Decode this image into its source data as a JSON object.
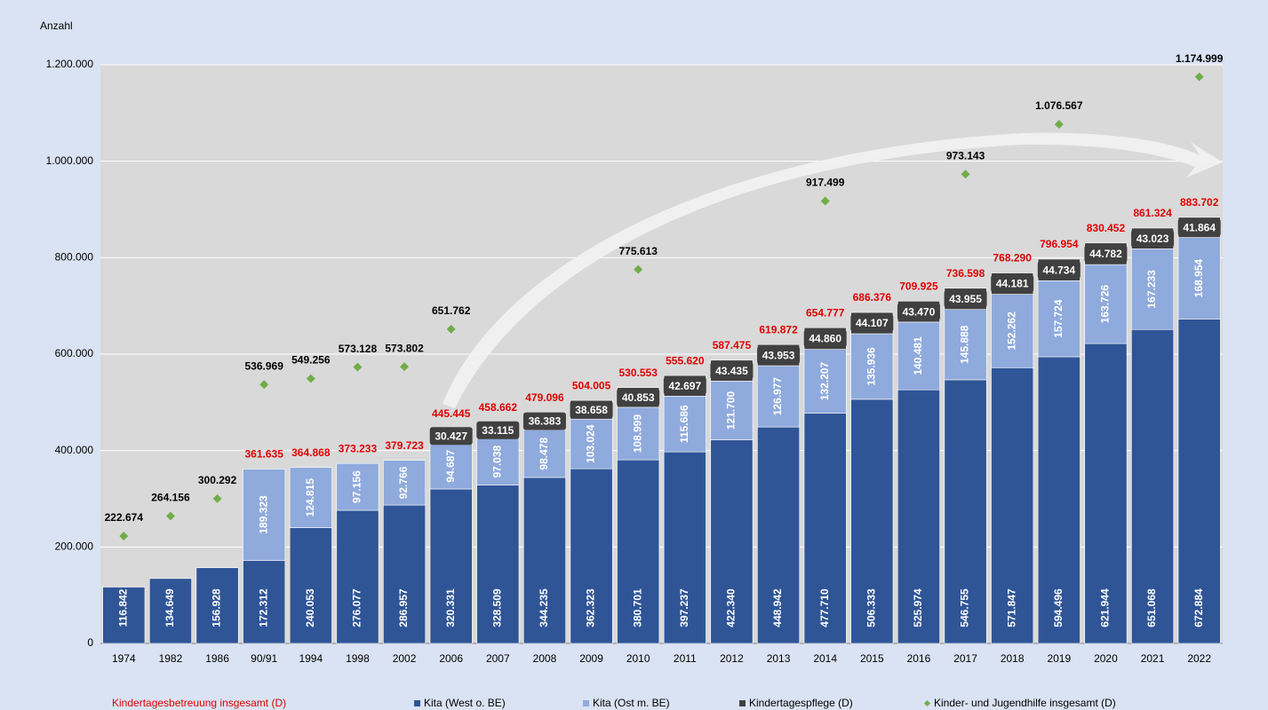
{
  "chart_data": {
    "type": "bar",
    "stacked": true,
    "y_label": "Anzahl",
    "categories": [
      "1974",
      "1982",
      "1986",
      "90/91",
      "1994",
      "1998",
      "2002",
      "2006",
      "2007",
      "2008",
      "2009",
      "2010",
      "2011",
      "2012",
      "2013",
      "2014",
      "2015",
      "2016",
      "2017",
      "2018",
      "2019",
      "2020",
      "2021",
      "2022"
    ],
    "ylim": [
      0,
      1200000
    ],
    "yticks": [
      0,
      {
        "value": 200000,
        "label": "200.000"
      },
      {
        "value": 400000,
        "label": "400.000"
      },
      {
        "value": 600000,
        "label": "600.000"
      },
      {
        "value": 800000,
        "label": "800.000"
      },
      {
        "value": 1000000,
        "label": "1.000.000"
      },
      {
        "value": 1200000,
        "label": "1.200.000"
      }
    ],
    "grid": true,
    "series": [
      {
        "name": "Kita (West o. BE)",
        "kind": "bar",
        "color": "#2f5597",
        "values": [
          116842,
          134649,
          156928,
          172312,
          240053,
          276077,
          286957,
          320331,
          328509,
          344235,
          362323,
          380701,
          397237,
          422340,
          448942,
          477710,
          506333,
          525974,
          546755,
          571847,
          594496,
          621944,
          651068,
          672884
        ],
        "value_labels": [
          "116.842",
          "134.649",
          "156.928",
          "172.312",
          "240.053",
          "276.077",
          "286.957",
          "320.331",
          "328.509",
          "344.235",
          "362.323",
          "380.701",
          "397.237",
          "422.340",
          "448.942",
          "477.710",
          "506.333",
          "525.974",
          "546.755",
          "571.847",
          "594.496",
          "621.944",
          "651.068",
          "672.884"
        ]
      },
      {
        "name": "Kita (Ost m. BE)",
        "kind": "bar",
        "color": "#8faadc",
        "values": [
          null,
          null,
          null,
          189323,
          124815,
          97156,
          92766,
          94687,
          97038,
          98478,
          103024,
          108999,
          115686,
          121700,
          126977,
          132207,
          135936,
          140481,
          145888,
          152262,
          157724,
          163726,
          167233,
          168954
        ],
        "value_labels": [
          null,
          null,
          null,
          "189.323",
          "124.815",
          "97.156",
          "92.766",
          "94.687",
          "97.038",
          "98.478",
          "103.024",
          "108.999",
          "115.686",
          "121.700",
          "126.977",
          "132.207",
          "135.936",
          "140.481",
          "145.888",
          "152.262",
          "157.724",
          "163.726",
          "167.233",
          "168.954"
        ]
      },
      {
        "name": "Kindertagespflege (D)",
        "kind": "bar",
        "color": "#404040",
        "values": [
          null,
          null,
          null,
          null,
          null,
          null,
          null,
          30427,
          33115,
          36383,
          38658,
          40853,
          42697,
          43435,
          43953,
          44860,
          44107,
          43470,
          43955,
          44181,
          44734,
          44782,
          43023,
          41864
        ],
        "value_labels": [
          null,
          null,
          null,
          null,
          null,
          null,
          null,
          "30.427",
          "33.115",
          "36.383",
          "38.658",
          "40.853",
          "42.697",
          "43.435",
          "43.953",
          "44.860",
          "44.107",
          "43.470",
          "43.955",
          "44.181",
          "44.734",
          "44.782",
          "43.023",
          "41.864"
        ]
      },
      {
        "name": "Kinder- und Jugendhilfe insgesamt (D)",
        "kind": "scatter",
        "color": "#70ad47",
        "values": [
          222674,
          264156,
          300292,
          536969,
          549256,
          573128,
          573802,
          651762,
          null,
          null,
          null,
          775613,
          null,
          null,
          null,
          917499,
          null,
          null,
          973143,
          null,
          1076567,
          null,
          null,
          1174999
        ],
        "value_labels": [
          "222.674",
          "264.156",
          "300.292",
          "536.969",
          "549.256",
          "573.128",
          "573.802",
          "651.762",
          null,
          null,
          null,
          "775.613",
          null,
          null,
          null,
          "917.499",
          null,
          null,
          "973.143",
          null,
          "1.076.567",
          null,
          null,
          "1.174.999"
        ]
      },
      {
        "name": "Kindertagesbetreuung insgesamt (D)",
        "kind": "total",
        "color": "#e00000",
        "values": [
          null,
          null,
          null,
          361635,
          364868,
          373233,
          379723,
          445445,
          458662,
          479096,
          504005,
          530553,
          555620,
          587475,
          619872,
          654777,
          686376,
          709925,
          736598,
          768290,
          796954,
          830452,
          861324,
          883702
        ],
        "value_labels": [
          null,
          null,
          null,
          "361.635",
          "364.868",
          "373.233",
          "379.723",
          "445.445",
          "458.662",
          "479.096",
          "504.005",
          "530.553",
          "555.620",
          "587.475",
          "619.872",
          "654.777",
          "686.376",
          "709.925",
          "736.598",
          "768.290",
          "796.954",
          "830.452",
          "861.324",
          "883.702"
        ]
      }
    ]
  }
}
